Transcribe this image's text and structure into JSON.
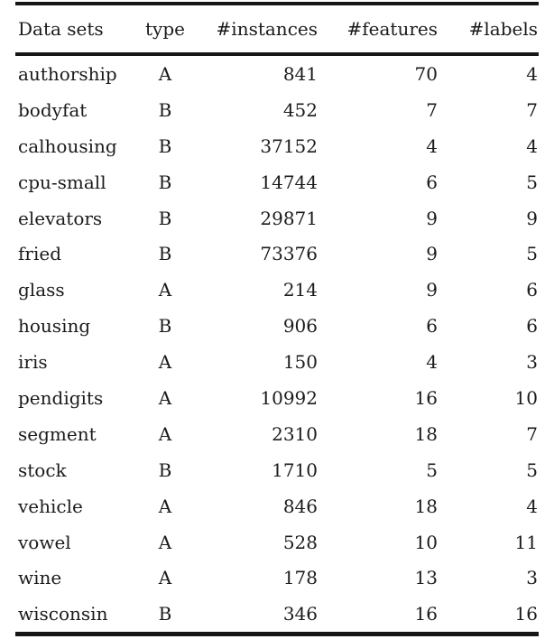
{
  "table": {
    "columns": [
      {
        "label": "Data sets",
        "align": "left",
        "cell_name": "dataset-name-cell"
      },
      {
        "label": "type",
        "align": "center",
        "cell_name": "type-cell"
      },
      {
        "label": "#instances",
        "align": "right",
        "cell_name": "instances-cell"
      },
      {
        "label": "#features",
        "align": "right",
        "cell_name": "features-cell"
      },
      {
        "label": "#labels",
        "align": "right",
        "cell_name": "labels-cell"
      }
    ],
    "rows": [
      {
        "cells": [
          "authorship",
          "A",
          "841",
          "70",
          "4"
        ]
      },
      {
        "cells": [
          "bodyfat",
          "B",
          "452",
          "7",
          "7"
        ]
      },
      {
        "cells": [
          "calhousing",
          "B",
          "37152",
          "4",
          "4"
        ]
      },
      {
        "cells": [
          "cpu-small",
          "B",
          "14744",
          "6",
          "5"
        ]
      },
      {
        "cells": [
          "elevators",
          "B",
          "29871",
          "9",
          "9"
        ]
      },
      {
        "cells": [
          "fried",
          "B",
          "73376",
          "9",
          "5"
        ]
      },
      {
        "cells": [
          "glass",
          "A",
          "214",
          "9",
          "6"
        ]
      },
      {
        "cells": [
          "housing",
          "B",
          "906",
          "6",
          "6"
        ]
      },
      {
        "cells": [
          "iris",
          "A",
          "150",
          "4",
          "3"
        ]
      },
      {
        "cells": [
          "pendigits",
          "A",
          "10992",
          "16",
          "10"
        ]
      },
      {
        "cells": [
          "segment",
          "A",
          "2310",
          "18",
          "7"
        ]
      },
      {
        "cells": [
          "stock",
          "B",
          "1710",
          "5",
          "5"
        ]
      },
      {
        "cells": [
          "vehicle",
          "A",
          "846",
          "18",
          "4"
        ]
      },
      {
        "cells": [
          "vowel",
          "A",
          "528",
          "10",
          "11"
        ]
      },
      {
        "cells": [
          "wine",
          "A",
          "178",
          "13",
          "3"
        ]
      },
      {
        "cells": [
          "wisconsin",
          "B",
          "346",
          "16",
          "16"
        ]
      }
    ]
  },
  "colors": {
    "text": "#1b1b1b",
    "rule": "#161616",
    "background": "#ffffff"
  }
}
